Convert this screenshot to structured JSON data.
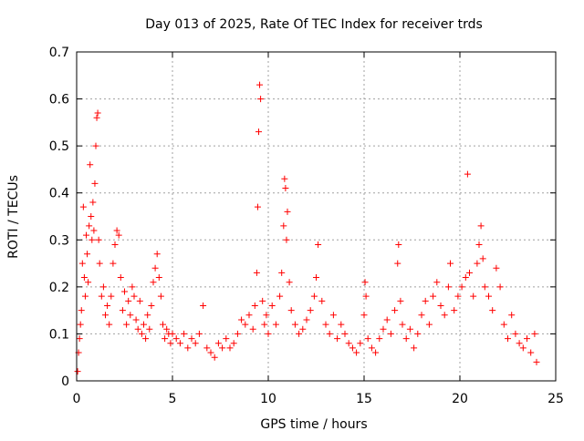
{
  "chart_data": {
    "type": "scatter",
    "title": "Day 013 of 2025, Rate Of TEC Index for receiver trds",
    "xlabel": "GPS time / hours",
    "ylabel": "ROTI / TECUs",
    "xlim": [
      0,
      25
    ],
    "ylim": [
      0,
      0.7
    ],
    "xticks": [
      0,
      5,
      10,
      15,
      20,
      25
    ],
    "xtick_labels": [
      "0",
      "5",
      "10",
      "15",
      "20",
      "25"
    ],
    "yticks": [
      0,
      0.1,
      0.2,
      0.3,
      0.4,
      0.5,
      0.6,
      0.7
    ],
    "ytick_labels": [
      "0",
      "0.1",
      "0.2",
      "0.3",
      "0.4",
      "0.5",
      "0.6",
      "0.7"
    ],
    "grid": true,
    "marker": "+",
    "color": "#ff0000",
    "series": [
      {
        "points": [
          [
            0.05,
            0.02
          ],
          [
            0.1,
            0.06
          ],
          [
            0.15,
            0.09
          ],
          [
            0.2,
            0.12
          ],
          [
            0.25,
            0.15
          ],
          [
            0.3,
            0.25
          ],
          [
            0.35,
            0.37
          ],
          [
            0.4,
            0.22
          ],
          [
            0.45,
            0.18
          ],
          [
            0.5,
            0.31
          ],
          [
            0.55,
            0.27
          ],
          [
            0.6,
            0.21
          ],
          [
            0.65,
            0.33
          ],
          [
            0.7,
            0.46
          ],
          [
            0.75,
            0.35
          ],
          [
            0.8,
            0.3
          ],
          [
            0.85,
            0.38
          ],
          [
            0.9,
            0.32
          ],
          [
            0.95,
            0.42
          ],
          [
            1.0,
            0.5
          ],
          [
            1.05,
            0.56
          ],
          [
            1.1,
            0.57
          ],
          [
            1.15,
            0.3
          ],
          [
            1.2,
            0.25
          ],
          [
            1.3,
            0.18
          ],
          [
            1.4,
            0.2
          ],
          [
            1.5,
            0.14
          ],
          [
            1.6,
            0.16
          ],
          [
            1.7,
            0.12
          ],
          [
            1.8,
            0.18
          ],
          [
            1.9,
            0.25
          ],
          [
            2.0,
            0.29
          ],
          [
            2.1,
            0.32
          ],
          [
            2.2,
            0.31
          ],
          [
            2.3,
            0.22
          ],
          [
            2.4,
            0.15
          ],
          [
            2.5,
            0.19
          ],
          [
            2.6,
            0.12
          ],
          [
            2.7,
            0.17
          ],
          [
            2.8,
            0.14
          ],
          [
            2.9,
            0.2
          ],
          [
            3.0,
            0.18
          ],
          [
            3.1,
            0.13
          ],
          [
            3.2,
            0.11
          ],
          [
            3.3,
            0.17
          ],
          [
            3.4,
            0.1
          ],
          [
            3.5,
            0.12
          ],
          [
            3.6,
            0.09
          ],
          [
            3.7,
            0.14
          ],
          [
            3.8,
            0.11
          ],
          [
            3.9,
            0.16
          ],
          [
            4.0,
            0.21
          ],
          [
            4.1,
            0.24
          ],
          [
            4.2,
            0.27
          ],
          [
            4.3,
            0.22
          ],
          [
            4.4,
            0.18
          ],
          [
            4.5,
            0.12
          ],
          [
            4.6,
            0.09
          ],
          [
            4.7,
            0.11
          ],
          [
            4.8,
            0.1
          ],
          [
            4.9,
            0.08
          ],
          [
            5.0,
            0.1
          ],
          [
            5.2,
            0.09
          ],
          [
            5.4,
            0.08
          ],
          [
            5.6,
            0.1
          ],
          [
            5.8,
            0.07
          ],
          [
            6.0,
            0.09
          ],
          [
            6.2,
            0.08
          ],
          [
            6.4,
            0.1
          ],
          [
            6.6,
            0.16
          ],
          [
            6.8,
            0.07
          ],
          [
            7.0,
            0.06
          ],
          [
            7.2,
            0.05
          ],
          [
            7.4,
            0.08
          ],
          [
            7.6,
            0.07
          ],
          [
            7.8,
            0.09
          ],
          [
            8.0,
            0.07
          ],
          [
            8.2,
            0.08
          ],
          [
            8.4,
            0.1
          ],
          [
            8.6,
            0.13
          ],
          [
            8.8,
            0.12
          ],
          [
            9.0,
            0.14
          ],
          [
            9.2,
            0.11
          ],
          [
            9.3,
            0.16
          ],
          [
            9.4,
            0.23
          ],
          [
            9.45,
            0.37
          ],
          [
            9.5,
            0.53
          ],
          [
            9.55,
            0.63
          ],
          [
            9.6,
            0.6
          ],
          [
            9.7,
            0.17
          ],
          [
            9.8,
            0.12
          ],
          [
            9.9,
            0.14
          ],
          [
            10.0,
            0.1
          ],
          [
            10.2,
            0.16
          ],
          [
            10.4,
            0.12
          ],
          [
            10.6,
            0.18
          ],
          [
            10.7,
            0.23
          ],
          [
            10.8,
            0.33
          ],
          [
            10.85,
            0.43
          ],
          [
            10.9,
            0.41
          ],
          [
            10.95,
            0.3
          ],
          [
            11.0,
            0.36
          ],
          [
            11.1,
            0.21
          ],
          [
            11.2,
            0.15
          ],
          [
            11.4,
            0.12
          ],
          [
            11.6,
            0.1
          ],
          [
            11.8,
            0.11
          ],
          [
            12.0,
            0.13
          ],
          [
            12.2,
            0.15
          ],
          [
            12.4,
            0.18
          ],
          [
            12.5,
            0.22
          ],
          [
            12.6,
            0.29
          ],
          [
            12.8,
            0.17
          ],
          [
            13.0,
            0.12
          ],
          [
            13.2,
            0.1
          ],
          [
            13.4,
            0.14
          ],
          [
            13.6,
            0.09
          ],
          [
            13.8,
            0.12
          ],
          [
            14.0,
            0.1
          ],
          [
            14.2,
            0.08
          ],
          [
            14.4,
            0.07
          ],
          [
            14.6,
            0.06
          ],
          [
            14.8,
            0.08
          ],
          [
            15.0,
            0.14
          ],
          [
            15.05,
            0.21
          ],
          [
            15.1,
            0.18
          ],
          [
            15.2,
            0.09
          ],
          [
            15.4,
            0.07
          ],
          [
            15.6,
            0.06
          ],
          [
            15.8,
            0.09
          ],
          [
            16.0,
            0.11
          ],
          [
            16.2,
            0.13
          ],
          [
            16.4,
            0.1
          ],
          [
            16.6,
            0.15
          ],
          [
            16.75,
            0.25
          ],
          [
            16.8,
            0.29
          ],
          [
            16.9,
            0.17
          ],
          [
            17.0,
            0.12
          ],
          [
            17.2,
            0.09
          ],
          [
            17.4,
            0.11
          ],
          [
            17.6,
            0.07
          ],
          [
            17.8,
            0.1
          ],
          [
            18.0,
            0.14
          ],
          [
            18.2,
            0.17
          ],
          [
            18.4,
            0.12
          ],
          [
            18.6,
            0.18
          ],
          [
            18.8,
            0.21
          ],
          [
            19.0,
            0.16
          ],
          [
            19.2,
            0.14
          ],
          [
            19.4,
            0.2
          ],
          [
            19.5,
            0.25
          ],
          [
            19.7,
            0.15
          ],
          [
            19.9,
            0.18
          ],
          [
            20.1,
            0.2
          ],
          [
            20.3,
            0.22
          ],
          [
            20.4,
            0.44
          ],
          [
            20.5,
            0.23
          ],
          [
            20.7,
            0.18
          ],
          [
            20.9,
            0.25
          ],
          [
            21.0,
            0.29
          ],
          [
            21.1,
            0.33
          ],
          [
            21.2,
            0.26
          ],
          [
            21.3,
            0.2
          ],
          [
            21.5,
            0.18
          ],
          [
            21.7,
            0.15
          ],
          [
            21.9,
            0.24
          ],
          [
            22.1,
            0.2
          ],
          [
            22.3,
            0.12
          ],
          [
            22.5,
            0.09
          ],
          [
            22.7,
            0.14
          ],
          [
            22.9,
            0.1
          ],
          [
            23.1,
            0.08
          ],
          [
            23.3,
            0.07
          ],
          [
            23.5,
            0.09
          ],
          [
            23.7,
            0.06
          ],
          [
            23.9,
            0.1
          ],
          [
            24.0,
            0.04
          ]
        ]
      }
    ]
  }
}
